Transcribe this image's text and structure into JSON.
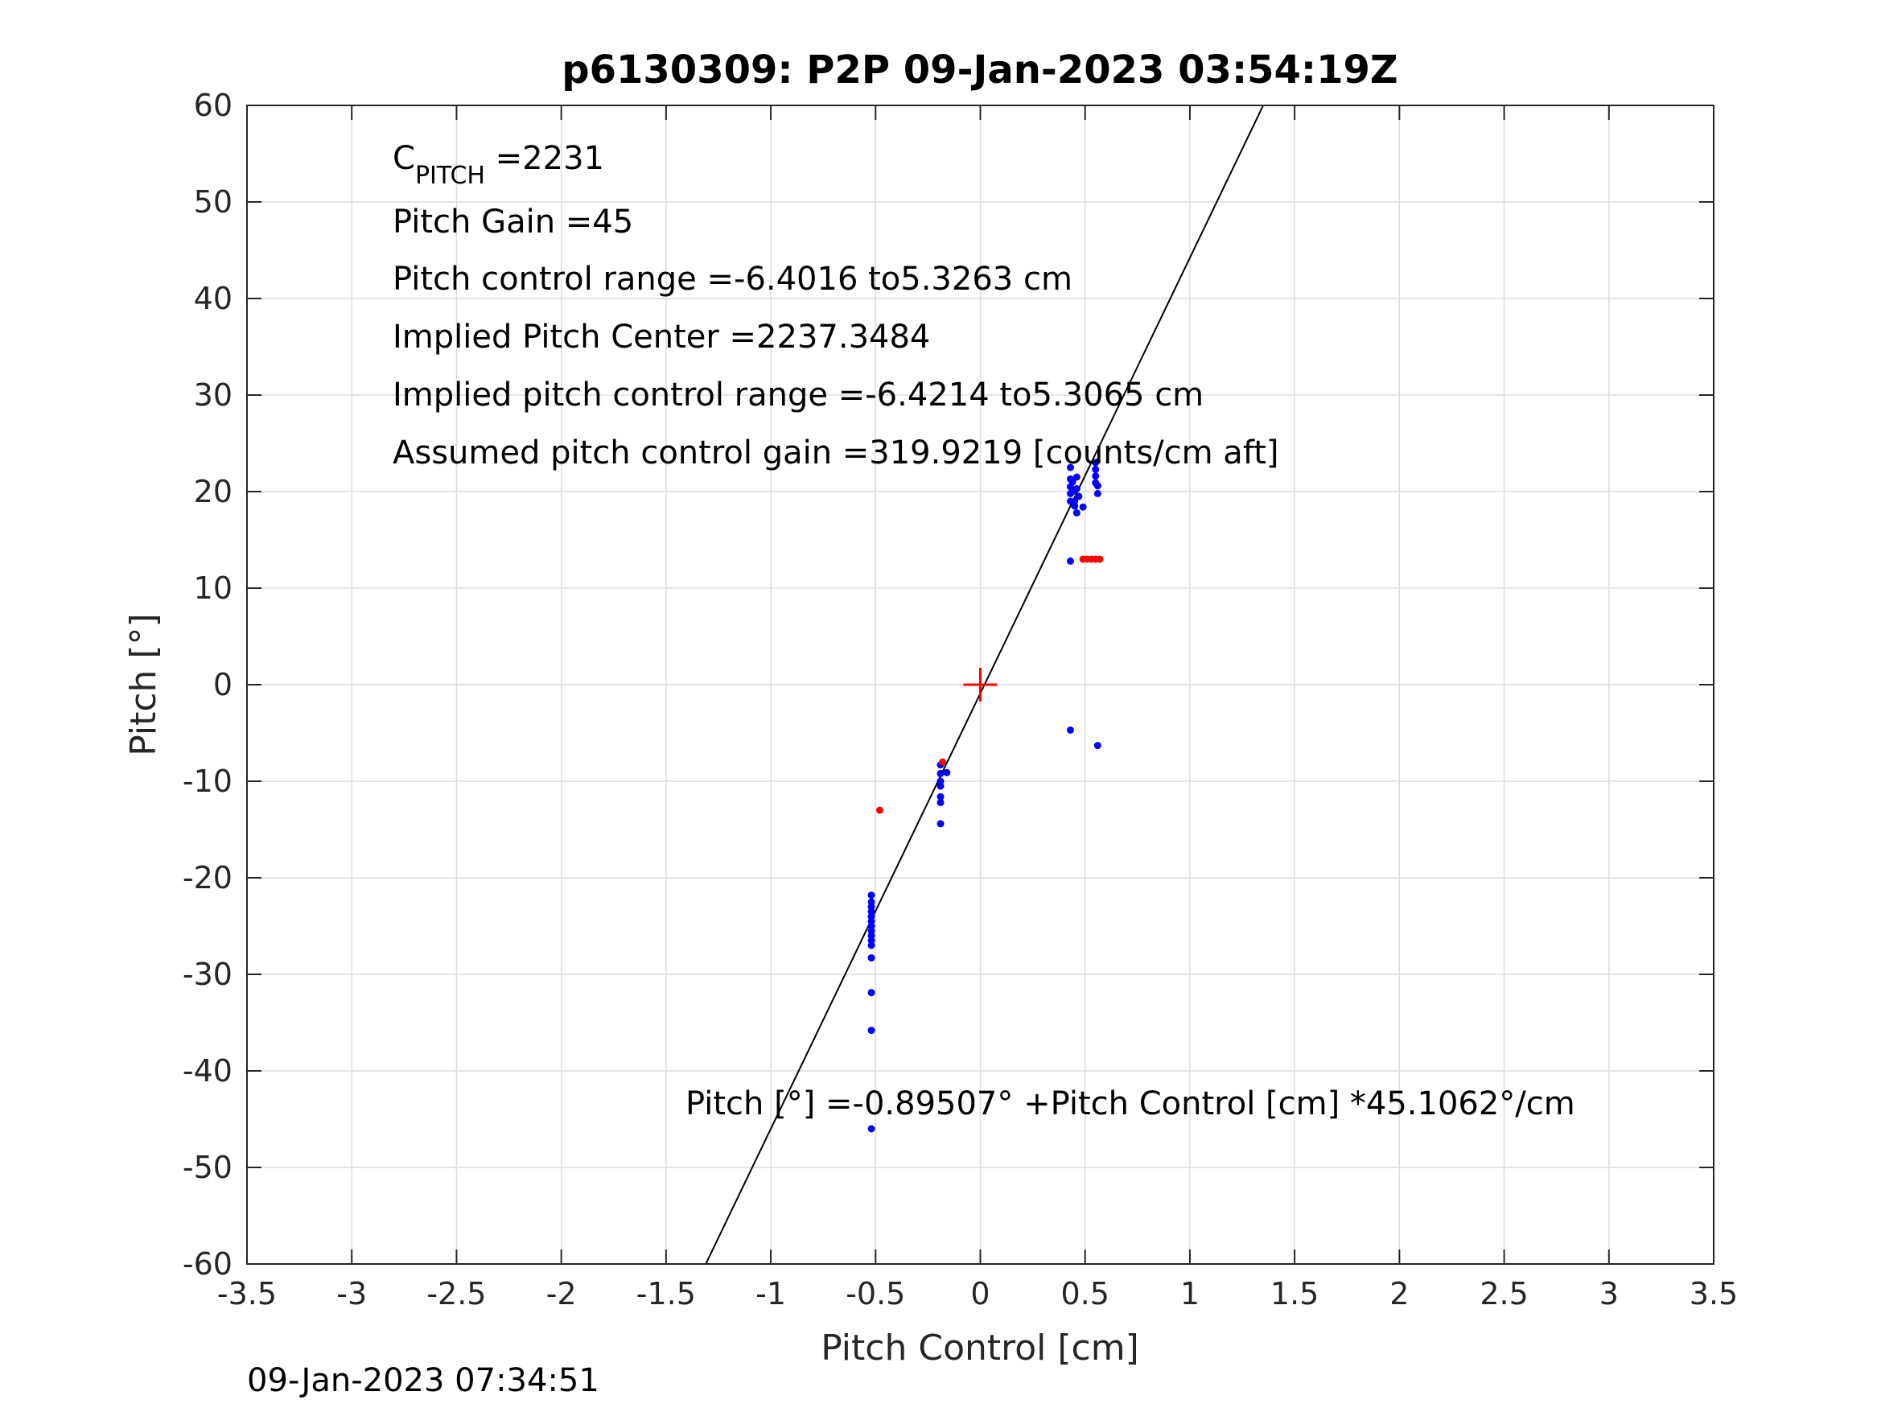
{
  "chart_data": {
    "type": "scatter",
    "title": "p6130309: P2P 09-Jan-2023 03:54:19Z",
    "xlabel": "Pitch Control [cm]",
    "ylabel": "Pitch [°]",
    "xlim": [
      -3.5,
      3.5
    ],
    "ylim": [
      -60,
      60
    ],
    "xticks": [
      -3.5,
      -3,
      -2.5,
      -2,
      -1.5,
      -1,
      -0.5,
      0,
      0.5,
      1,
      1.5,
      2,
      2.5,
      3,
      3.5
    ],
    "xtick_labels": [
      "-3.5",
      "-3",
      "-2.5",
      "-2",
      "-1.5",
      "-1",
      "-0.5",
      "0",
      "0.5",
      "1",
      "1.5",
      "2",
      "2.5",
      "3",
      "3.5"
    ],
    "yticks": [
      -60,
      -50,
      -40,
      -30,
      -20,
      -10,
      0,
      10,
      20,
      30,
      40,
      50,
      60
    ],
    "ytick_labels": [
      "-60",
      "-50",
      "-40",
      "-30",
      "-20",
      "-10",
      "0",
      "10",
      "20",
      "30",
      "40",
      "50",
      "60"
    ],
    "grid": true,
    "series": [
      {
        "color": "#0000ff",
        "points": [
          [
            -0.52,
            -21.8
          ],
          [
            -0.52,
            -22.5
          ],
          [
            -0.52,
            -23.0
          ],
          [
            -0.52,
            -23.5
          ],
          [
            -0.52,
            -24.0
          ],
          [
            -0.52,
            -24.5
          ],
          [
            -0.52,
            -25.0
          ],
          [
            -0.52,
            -25.5
          ],
          [
            -0.52,
            -26.0
          ],
          [
            -0.52,
            -26.5
          ],
          [
            -0.52,
            -27.0
          ],
          [
            -0.52,
            -28.3
          ],
          [
            -0.52,
            -31.9
          ],
          [
            -0.52,
            -35.8
          ],
          [
            -0.52,
            -46.0
          ],
          [
            -0.19,
            -8.3
          ],
          [
            -0.19,
            -9.2
          ],
          [
            -0.19,
            -10.0
          ],
          [
            -0.19,
            -10.5
          ],
          [
            -0.19,
            -11.6
          ],
          [
            -0.19,
            -12.2
          ],
          [
            -0.19,
            -14.4
          ],
          [
            -0.16,
            -9.1
          ],
          [
            0.43,
            22.5
          ],
          [
            0.43,
            21.3
          ],
          [
            0.43,
            20.5
          ],
          [
            0.43,
            19.8
          ],
          [
            0.43,
            19.0
          ],
          [
            0.43,
            12.8
          ],
          [
            0.43,
            -4.7
          ],
          [
            0.44,
            21.0
          ],
          [
            0.44,
            20.0
          ],
          [
            0.45,
            19.0
          ],
          [
            0.45,
            18.5
          ],
          [
            0.46,
            21.5
          ],
          [
            0.46,
            20.3
          ],
          [
            0.46,
            17.8
          ],
          [
            0.47,
            19.5
          ],
          [
            0.49,
            18.4
          ],
          [
            0.55,
            23.0
          ],
          [
            0.55,
            22.3
          ],
          [
            0.55,
            21.6
          ],
          [
            0.55,
            20.9
          ],
          [
            0.56,
            20.6
          ],
          [
            0.56,
            19.8
          ],
          [
            0.56,
            -6.3
          ]
        ]
      },
      {
        "color": "#ff0000",
        "points": [
          [
            -0.48,
            -13.0
          ],
          [
            -0.18,
            -8.0
          ],
          [
            0.49,
            13.0
          ],
          [
            0.51,
            13.0
          ],
          [
            0.53,
            13.0
          ],
          [
            0.55,
            13.0
          ],
          [
            0.57,
            13.0
          ]
        ]
      }
    ],
    "fit_line": {
      "intercept": -0.89507,
      "slope": 45.1062,
      "color": "#000000"
    },
    "center_marker": {
      "x": 0,
      "y": 0,
      "color": "#ff0000",
      "symbol": "+"
    },
    "annotations": {
      "cpitch_main": "C",
      "cpitch_sub": "PITCH",
      "cpitch_value": " =2231",
      "pitch_gain": "Pitch Gain =45",
      "control_range": "Pitch control range =-6.4016 to5.3263 cm",
      "implied_center": "Implied Pitch Center =2237.3484",
      "implied_range": "Implied pitch control range =-6.4214 to5.3065 cm",
      "assumed_gain": "Assumed pitch control gain =319.9219 [counts/cm aft]",
      "fit_equation": "Pitch [°] =-0.89507° +Pitch Control [cm] *45.1062°/cm"
    },
    "footer_timestamp": "09-Jan-2023 07:34:51"
  }
}
